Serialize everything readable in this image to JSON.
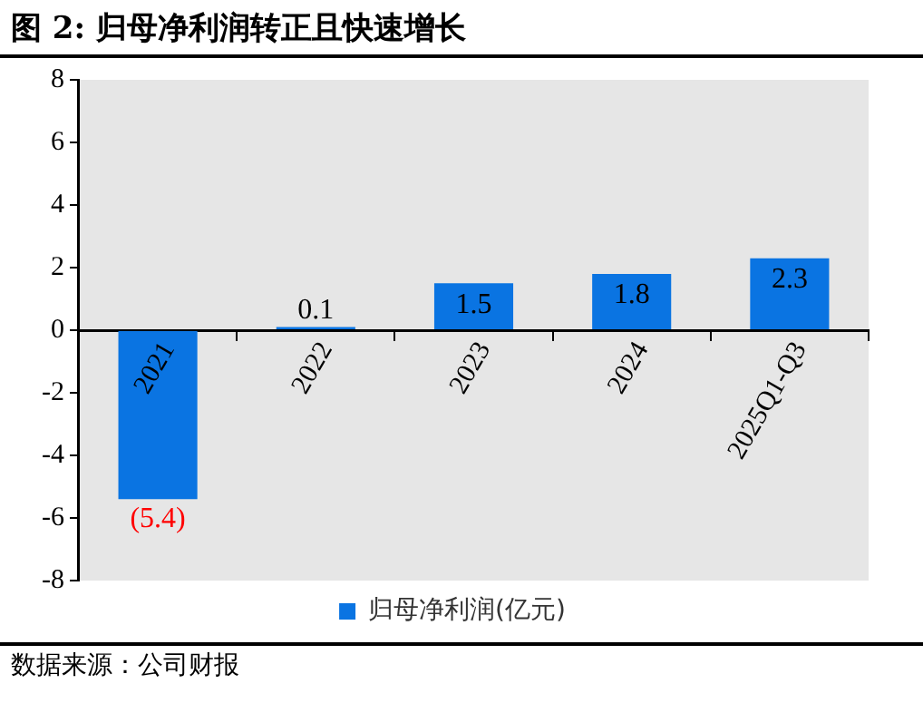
{
  "chart_data": {
    "type": "bar",
    "title": "图 2:  归母净利润转正且快速增长",
    "categories": [
      "2021",
      "2022",
      "2023",
      "2024",
      "2025Q1-Q3"
    ],
    "series": [
      {
        "name": "归母净利润(亿元)",
        "color": "#0a74e2",
        "values": [
          -5.4,
          0.1,
          1.5,
          1.8,
          2.3
        ],
        "value_labels": [
          "(5.4)",
          "0.1",
          "1.5",
          "1.8",
          "2.3"
        ]
      }
    ],
    "ylim": [
      -8,
      8
    ],
    "yticks": [
      -8,
      -6,
      -4,
      -2,
      0,
      2,
      4,
      6,
      8
    ],
    "grid": false,
    "legend": "bottom",
    "annotations": [
      "数据来源：公司财报"
    ]
  }
}
